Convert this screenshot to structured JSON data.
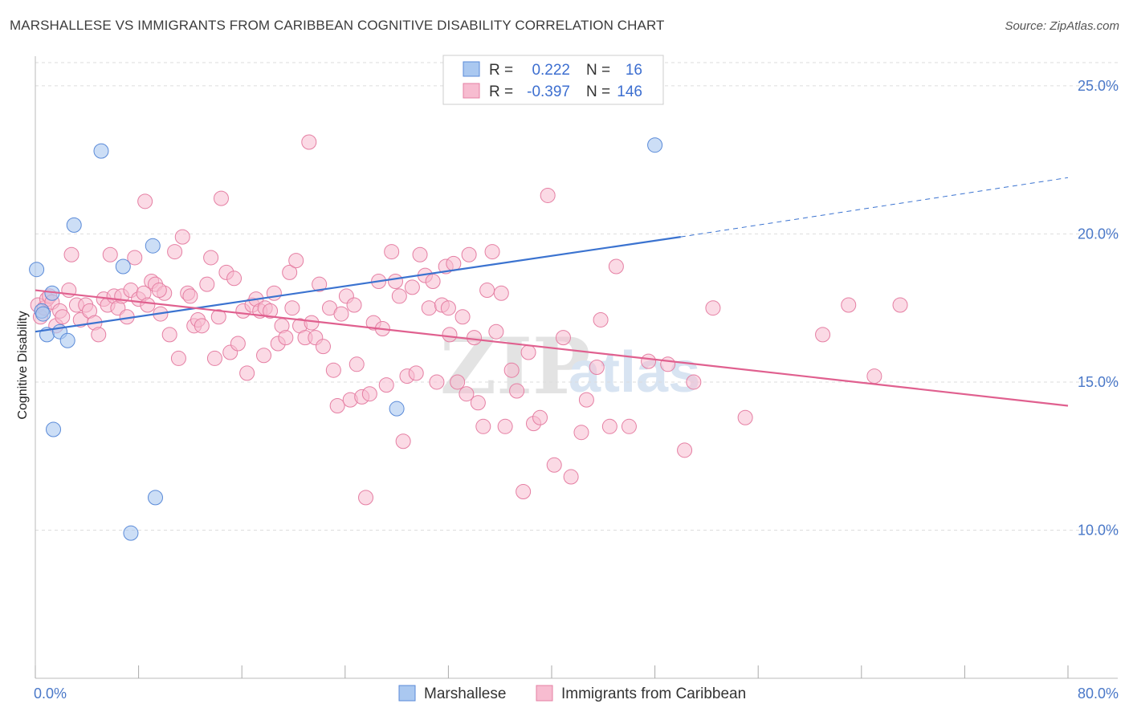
{
  "title": "MARSHALLESE VS IMMIGRANTS FROM CARIBBEAN COGNITIVE DISABILITY CORRELATION CHART",
  "source": "Source: ZipAtlas.com",
  "watermark": {
    "zip": "ZIP",
    "atlas": "atlas"
  },
  "colors": {
    "blue_fill": "#aac8f0",
    "blue_stroke": "#5a8ad8",
    "blue_line": "#3b73d0",
    "pink_fill": "#f7bcd0",
    "pink_stroke": "#e57fa3",
    "pink_line": "#e0608f",
    "grid": "#dddddd",
    "tick_text": "#4a78c8"
  },
  "legend": {
    "r_label": "R =",
    "n_label": "N =",
    "rows": [
      {
        "series": "Marshallese",
        "r": "0.222",
        "n": "16"
      },
      {
        "series": "Immigrants from Caribbean",
        "r": "-0.397",
        "n": "146"
      }
    ]
  },
  "chart_data": {
    "type": "scatter",
    "xlabel": "",
    "ylabel": "Cognitive Disability",
    "xlim": [
      0,
      80
    ],
    "ylim": [
      5,
      26
    ],
    "x_tick_labels": [
      "0.0%",
      "80.0%"
    ],
    "y_ticks": [
      10,
      15,
      20,
      25
    ],
    "y_tick_labels": [
      "10.0%",
      "15.0%",
      "20.0%",
      "25.0%"
    ],
    "grid": true,
    "legend_position": "top-center",
    "series": [
      {
        "name": "Marshallese",
        "trend": {
          "x": [
            0,
            50
          ],
          "y": [
            16.7,
            19.9
          ],
          "dashed_to": [
            80,
            21.9
          ]
        },
        "points": [
          [
            0.1,
            18.8
          ],
          [
            0.5,
            17.4
          ],
          [
            0.9,
            16.6
          ],
          [
            1.3,
            18.0
          ],
          [
            1.9,
            16.7
          ],
          [
            2.5,
            16.4
          ],
          [
            1.4,
            13.4
          ],
          [
            3.0,
            20.3
          ],
          [
            5.1,
            22.8
          ],
          [
            6.8,
            18.9
          ],
          [
            9.1,
            19.6
          ],
          [
            9.3,
            11.1
          ],
          [
            7.4,
            9.9
          ],
          [
            28.0,
            14.1
          ],
          [
            48.0,
            23.0
          ],
          [
            0.6,
            17.3
          ]
        ]
      },
      {
        "name": "Immigrants from Caribbean",
        "trend": {
          "x": [
            0,
            80
          ],
          "y": [
            18.1,
            14.2
          ]
        },
        "points": [
          [
            0.2,
            17.6
          ],
          [
            0.4,
            17.2
          ],
          [
            0.7,
            17.5
          ],
          [
            0.9,
            17.8
          ],
          [
            1.1,
            17.9
          ],
          [
            1.3,
            17.7
          ],
          [
            1.6,
            16.9
          ],
          [
            1.9,
            17.4
          ],
          [
            2.1,
            17.2
          ],
          [
            2.6,
            18.1
          ],
          [
            2.8,
            19.3
          ],
          [
            3.2,
            17.6
          ],
          [
            3.5,
            17.1
          ],
          [
            3.9,
            17.6
          ],
          [
            4.2,
            17.4
          ],
          [
            4.6,
            17.0
          ],
          [
            4.9,
            16.6
          ],
          [
            5.3,
            17.8
          ],
          [
            5.6,
            17.6
          ],
          [
            5.8,
            19.3
          ],
          [
            6.1,
            17.9
          ],
          [
            6.4,
            17.5
          ],
          [
            6.7,
            17.9
          ],
          [
            7.1,
            17.2
          ],
          [
            7.4,
            18.1
          ],
          [
            7.7,
            19.2
          ],
          [
            8.0,
            17.8
          ],
          [
            8.4,
            18.0
          ],
          [
            8.7,
            17.6
          ],
          [
            8.5,
            21.1
          ],
          [
            9.0,
            18.4
          ],
          [
            9.3,
            18.3
          ],
          [
            9.7,
            17.3
          ],
          [
            10.0,
            18.0
          ],
          [
            10.4,
            16.6
          ],
          [
            10.8,
            19.4
          ],
          [
            11.1,
            15.8
          ],
          [
            11.4,
            19.9
          ],
          [
            11.8,
            18.0
          ],
          [
            12.0,
            17.9
          ],
          [
            12.3,
            16.9
          ],
          [
            12.6,
            17.1
          ],
          [
            12.9,
            16.9
          ],
          [
            13.3,
            18.3
          ],
          [
            13.6,
            19.2
          ],
          [
            13.9,
            15.8
          ],
          [
            14.2,
            17.2
          ],
          [
            14.4,
            21.2
          ],
          [
            14.8,
            18.7
          ],
          [
            15.1,
            16.0
          ],
          [
            15.4,
            18.5
          ],
          [
            15.7,
            16.3
          ],
          [
            16.1,
            17.4
          ],
          [
            16.4,
            15.3
          ],
          [
            16.8,
            17.6
          ],
          [
            17.1,
            17.8
          ],
          [
            17.4,
            17.4
          ],
          [
            17.7,
            15.9
          ],
          [
            17.8,
            17.5
          ],
          [
            18.2,
            17.4
          ],
          [
            18.5,
            18.0
          ],
          [
            18.8,
            16.3
          ],
          [
            19.1,
            16.9
          ],
          [
            19.4,
            16.5
          ],
          [
            19.7,
            18.7
          ],
          [
            19.9,
            17.5
          ],
          [
            20.2,
            19.1
          ],
          [
            20.5,
            16.9
          ],
          [
            20.9,
            16.5
          ],
          [
            21.2,
            23.1
          ],
          [
            21.4,
            17.0
          ],
          [
            21.7,
            16.5
          ],
          [
            22.0,
            18.3
          ],
          [
            22.3,
            16.2
          ],
          [
            22.8,
            17.5
          ],
          [
            23.1,
            15.4
          ],
          [
            23.4,
            14.2
          ],
          [
            23.7,
            17.3
          ],
          [
            24.1,
            17.9
          ],
          [
            24.4,
            14.4
          ],
          [
            24.7,
            17.6
          ],
          [
            24.9,
            15.6
          ],
          [
            25.3,
            14.5
          ],
          [
            25.6,
            11.1
          ],
          [
            25.9,
            14.6
          ],
          [
            26.2,
            17.0
          ],
          [
            26.6,
            18.4
          ],
          [
            26.9,
            16.8
          ],
          [
            27.2,
            14.9
          ],
          [
            27.6,
            19.4
          ],
          [
            27.9,
            18.4
          ],
          [
            28.2,
            17.9
          ],
          [
            28.5,
            13.0
          ],
          [
            28.8,
            15.2
          ],
          [
            29.2,
            18.2
          ],
          [
            29.5,
            15.3
          ],
          [
            29.8,
            19.3
          ],
          [
            30.2,
            18.6
          ],
          [
            30.5,
            17.5
          ],
          [
            30.8,
            18.4
          ],
          [
            31.1,
            15.0
          ],
          [
            31.5,
            17.6
          ],
          [
            31.8,
            18.9
          ],
          [
            32.1,
            16.6
          ],
          [
            32.4,
            19.0
          ],
          [
            32.7,
            15.0
          ],
          [
            33.1,
            17.2
          ],
          [
            33.4,
            14.6
          ],
          [
            33.6,
            19.3
          ],
          [
            34.0,
            16.5
          ],
          [
            34.3,
            14.3
          ],
          [
            34.7,
            13.5
          ],
          [
            35.0,
            18.1
          ],
          [
            35.4,
            19.4
          ],
          [
            35.7,
            16.7
          ],
          [
            36.1,
            18.0
          ],
          [
            36.4,
            13.5
          ],
          [
            36.9,
            15.4
          ],
          [
            37.3,
            14.7
          ],
          [
            37.8,
            11.3
          ],
          [
            38.2,
            16.0
          ],
          [
            38.6,
            13.6
          ],
          [
            39.1,
            13.8
          ],
          [
            39.7,
            21.3
          ],
          [
            40.2,
            12.2
          ],
          [
            40.9,
            16.5
          ],
          [
            41.5,
            11.8
          ],
          [
            42.3,
            13.3
          ],
          [
            42.7,
            14.4
          ],
          [
            43.5,
            15.5
          ],
          [
            43.8,
            17.1
          ],
          [
            44.5,
            13.5
          ],
          [
            45.0,
            18.9
          ],
          [
            46.0,
            13.5
          ],
          [
            47.5,
            15.7
          ],
          [
            49.0,
            15.6
          ],
          [
            50.3,
            12.7
          ],
          [
            51.0,
            15.0
          ],
          [
            52.5,
            17.5
          ],
          [
            55.0,
            13.8
          ],
          [
            61.0,
            16.6
          ],
          [
            63.0,
            17.6
          ],
          [
            65.0,
            15.2
          ],
          [
            67.0,
            17.6
          ],
          [
            32.0,
            17.5
          ],
          [
            9.6,
            18.1
          ]
        ]
      }
    ]
  },
  "bottom_legend": [
    "Marshallese",
    "Immigrants from Caribbean"
  ]
}
